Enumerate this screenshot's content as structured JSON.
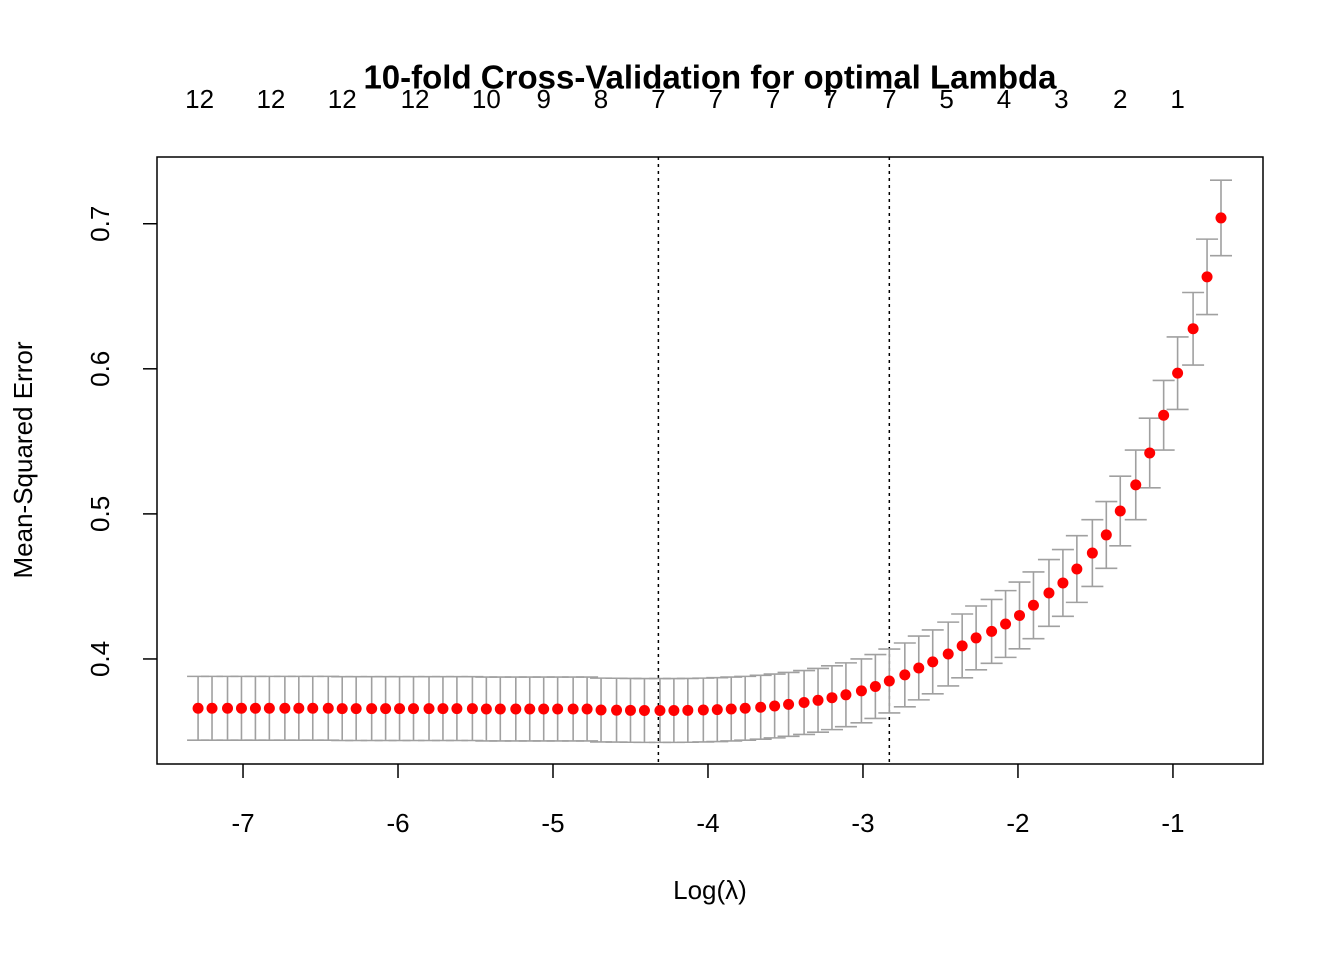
{
  "chart_data": {
    "type": "errorbar-scatter",
    "title": "10-fold Cross-Validation for optimal Lambda",
    "xlabel": "Log(λ)",
    "ylabel": "Mean-Squared Error",
    "xlim": [
      -7.555,
      -0.419
    ],
    "ylim": [
      0.3276,
      0.746
    ],
    "xticks": [
      -7,
      -6,
      -5,
      -4,
      -3,
      -2,
      -1
    ],
    "yticks": [
      0.4,
      0.5,
      0.6,
      0.7
    ],
    "x2ticks": [
      {
        "value": -7.28,
        "label": "12"
      },
      {
        "value": -6.82,
        "label": "12"
      },
      {
        "value": -6.36,
        "label": "12"
      },
      {
        "value": -5.89,
        "label": "12"
      },
      {
        "value": -5.43,
        "label": "10"
      },
      {
        "value": -5.06,
        "label": "9"
      },
      {
        "value": -4.69,
        "label": "8"
      },
      {
        "value": -4.32,
        "label": "7"
      },
      {
        "value": -3.95,
        "label": "7"
      },
      {
        "value": -3.58,
        "label": "7"
      },
      {
        "value": -3.21,
        "label": "7"
      },
      {
        "value": -2.83,
        "label": "7"
      },
      {
        "value": -2.46,
        "label": "5"
      },
      {
        "value": -2.09,
        "label": "4"
      },
      {
        "value": -1.72,
        "label": "3"
      },
      {
        "value": -1.34,
        "label": "2"
      },
      {
        "value": -0.97,
        "label": "1"
      }
    ],
    "vlines": [
      -4.32,
      -2.83
    ],
    "color": "#ff0000",
    "error_color": "#a0a0a0",
    "x": [
      -7.29,
      -7.2,
      -7.1,
      -7.01,
      -6.92,
      -6.83,
      -6.73,
      -6.64,
      -6.55,
      -6.45,
      -6.36,
      -6.27,
      -6.17,
      -6.08,
      -5.99,
      -5.9,
      -5.8,
      -5.71,
      -5.62,
      -5.52,
      -5.43,
      -5.34,
      -5.24,
      -5.15,
      -5.06,
      -4.97,
      -4.87,
      -4.78,
      -4.69,
      -4.59,
      -4.5,
      -4.41,
      -4.31,
      -4.22,
      -4.13,
      -4.03,
      -3.94,
      -3.85,
      -3.76,
      -3.66,
      -3.57,
      -3.48,
      -3.38,
      -3.29,
      -3.2,
      -3.11,
      -3.01,
      -2.92,
      -2.83,
      -2.73,
      -2.64,
      -2.55,
      -2.45,
      -2.36,
      -2.27,
      -2.17,
      -2.08,
      -1.99,
      -1.9,
      -1.8,
      -1.71,
      -1.62,
      -1.52,
      -1.43,
      -1.34,
      -1.24,
      -1.15,
      -1.06,
      -0.97,
      -0.87,
      -0.78,
      -0.69
    ],
    "values": [
      0.366,
      0.366,
      0.366,
      0.366,
      0.366,
      0.366,
      0.366,
      0.366,
      0.366,
      0.366,
      0.3658,
      0.3658,
      0.3658,
      0.3658,
      0.3658,
      0.3658,
      0.3658,
      0.3658,
      0.3658,
      0.3658,
      0.3655,
      0.3655,
      0.3655,
      0.3655,
      0.3655,
      0.3655,
      0.3655,
      0.3655,
      0.3648,
      0.3647,
      0.3646,
      0.3645,
      0.3645,
      0.3645,
      0.3646,
      0.3648,
      0.3651,
      0.3655,
      0.366,
      0.3667,
      0.3676,
      0.3687,
      0.37,
      0.3715,
      0.3733,
      0.3753,
      0.378,
      0.381,
      0.3848,
      0.389,
      0.3938,
      0.398,
      0.4034,
      0.409,
      0.4145,
      0.419,
      0.4241,
      0.43,
      0.437,
      0.4455,
      0.4524,
      0.462,
      0.473,
      0.4855,
      0.502,
      0.52,
      0.542,
      0.568,
      0.597,
      0.6276,
      0.6634,
      0.704
    ],
    "errors": [
      0.022,
      0.022,
      0.022,
      0.022,
      0.022,
      0.022,
      0.022,
      0.022,
      0.022,
      0.022,
      0.022,
      0.022,
      0.022,
      0.022,
      0.022,
      0.022,
      0.022,
      0.022,
      0.022,
      0.022,
      0.022,
      0.022,
      0.022,
      0.022,
      0.022,
      0.022,
      0.022,
      0.022,
      0.022,
      0.022,
      0.022,
      0.022,
      0.022,
      0.022,
      0.022,
      0.022,
      0.022,
      0.022,
      0.022,
      0.022,
      0.022,
      0.022,
      0.022,
      0.022,
      0.022,
      0.022,
      0.022,
      0.022,
      0.022,
      0.022,
      0.022,
      0.022,
      0.022,
      0.022,
      0.022,
      0.022,
      0.023,
      0.023,
      0.023,
      0.023,
      0.023,
      0.023,
      0.023,
      0.023,
      0.024,
      0.024,
      0.024,
      0.024,
      0.025,
      0.025,
      0.026,
      0.026
    ]
  }
}
